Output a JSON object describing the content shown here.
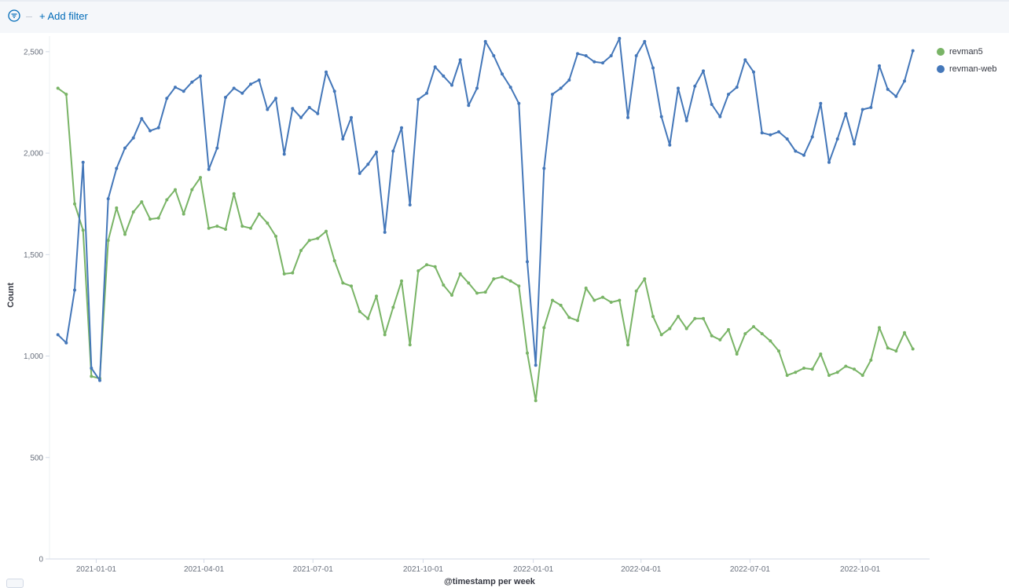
{
  "filter_bar": {
    "add_filter_label": "+ Add filter"
  },
  "chart_data": {
    "type": "line",
    "xlabel": "@timestamp per week",
    "ylabel": "Count",
    "ylim": [
      0,
      2600
    ],
    "xlim": [
      "2020-11-23",
      "2022-11-28"
    ],
    "yticks": [
      0,
      500,
      1000,
      1500,
      2000,
      2500
    ],
    "ytick_labels": [
      "0",
      "500",
      "1,000",
      "1,500",
      "2,000",
      "2,500"
    ],
    "xticks": [
      "2021-01-01",
      "2021-04-01",
      "2021-07-01",
      "2021-10-01",
      "2022-01-01",
      "2022-04-01",
      "2022-07-01",
      "2022-10-01"
    ],
    "legend_position": "top-right",
    "x_start": "2020-11-30",
    "x_step_days": 7,
    "series": [
      {
        "name": "revman5",
        "color": "#79b466",
        "values": [
          2320,
          2290,
          1750,
          1620,
          900,
          890,
          1570,
          1730,
          1600,
          1710,
          1760,
          1675,
          1680,
          1770,
          1820,
          1700,
          1820,
          1880,
          1630,
          1640,
          1625,
          1800,
          1640,
          1630,
          1700,
          1655,
          1590,
          1405,
          1410,
          1520,
          1570,
          1580,
          1615,
          1470,
          1360,
          1345,
          1220,
          1185,
          1295,
          1105,
          1240,
          1370,
          1055,
          1420,
          1450,
          1440,
          1350,
          1300,
          1405,
          1360,
          1310,
          1315,
          1380,
          1390,
          1370,
          1345,
          1015,
          780,
          1140,
          1275,
          1250,
          1190,
          1175,
          1335,
          1275,
          1290,
          1265,
          1275,
          1055,
          1320,
          1380,
          1195,
          1105,
          1135,
          1195,
          1135,
          1185,
          1185,
          1100,
          1080,
          1130,
          1010,
          1110,
          1145,
          1110,
          1075,
          1025,
          905,
          920,
          940,
          935,
          1010,
          905,
          920,
          950,
          935,
          905,
          980,
          1140,
          1040,
          1025,
          1115,
          1035
        ]
      },
      {
        "name": "revman-web",
        "color": "#4477b9",
        "values": [
          1105,
          1065,
          1325,
          1955,
          940,
          880,
          1775,
          1925,
          2025,
          2075,
          2170,
          2110,
          2125,
          2270,
          2325,
          2305,
          2350,
          2380,
          1920,
          2025,
          2275,
          2320,
          2295,
          2340,
          2360,
          2215,
          2270,
          1995,
          2220,
          2175,
          2225,
          2195,
          2400,
          2305,
          2070,
          2175,
          1900,
          1945,
          2005,
          1610,
          2010,
          2125,
          1745,
          2265,
          2295,
          2425,
          2380,
          2335,
          2460,
          2235,
          2320,
          2550,
          2480,
          2390,
          2325,
          2245,
          1465,
          955,
          1925,
          2290,
          2320,
          2360,
          2490,
          2480,
          2450,
          2445,
          2480,
          2565,
          2175,
          2480,
          2550,
          2420,
          2180,
          2040,
          2320,
          2160,
          2330,
          2405,
          2240,
          2180,
          2290,
          2325,
          2460,
          2400,
          2100,
          2090,
          2105,
          2070,
          2010,
          1990,
          2080,
          2245,
          1955,
          2070,
          2195,
          2045,
          2215,
          2225,
          2430,
          2315,
          2280,
          2355,
          2505
        ]
      }
    ]
  }
}
